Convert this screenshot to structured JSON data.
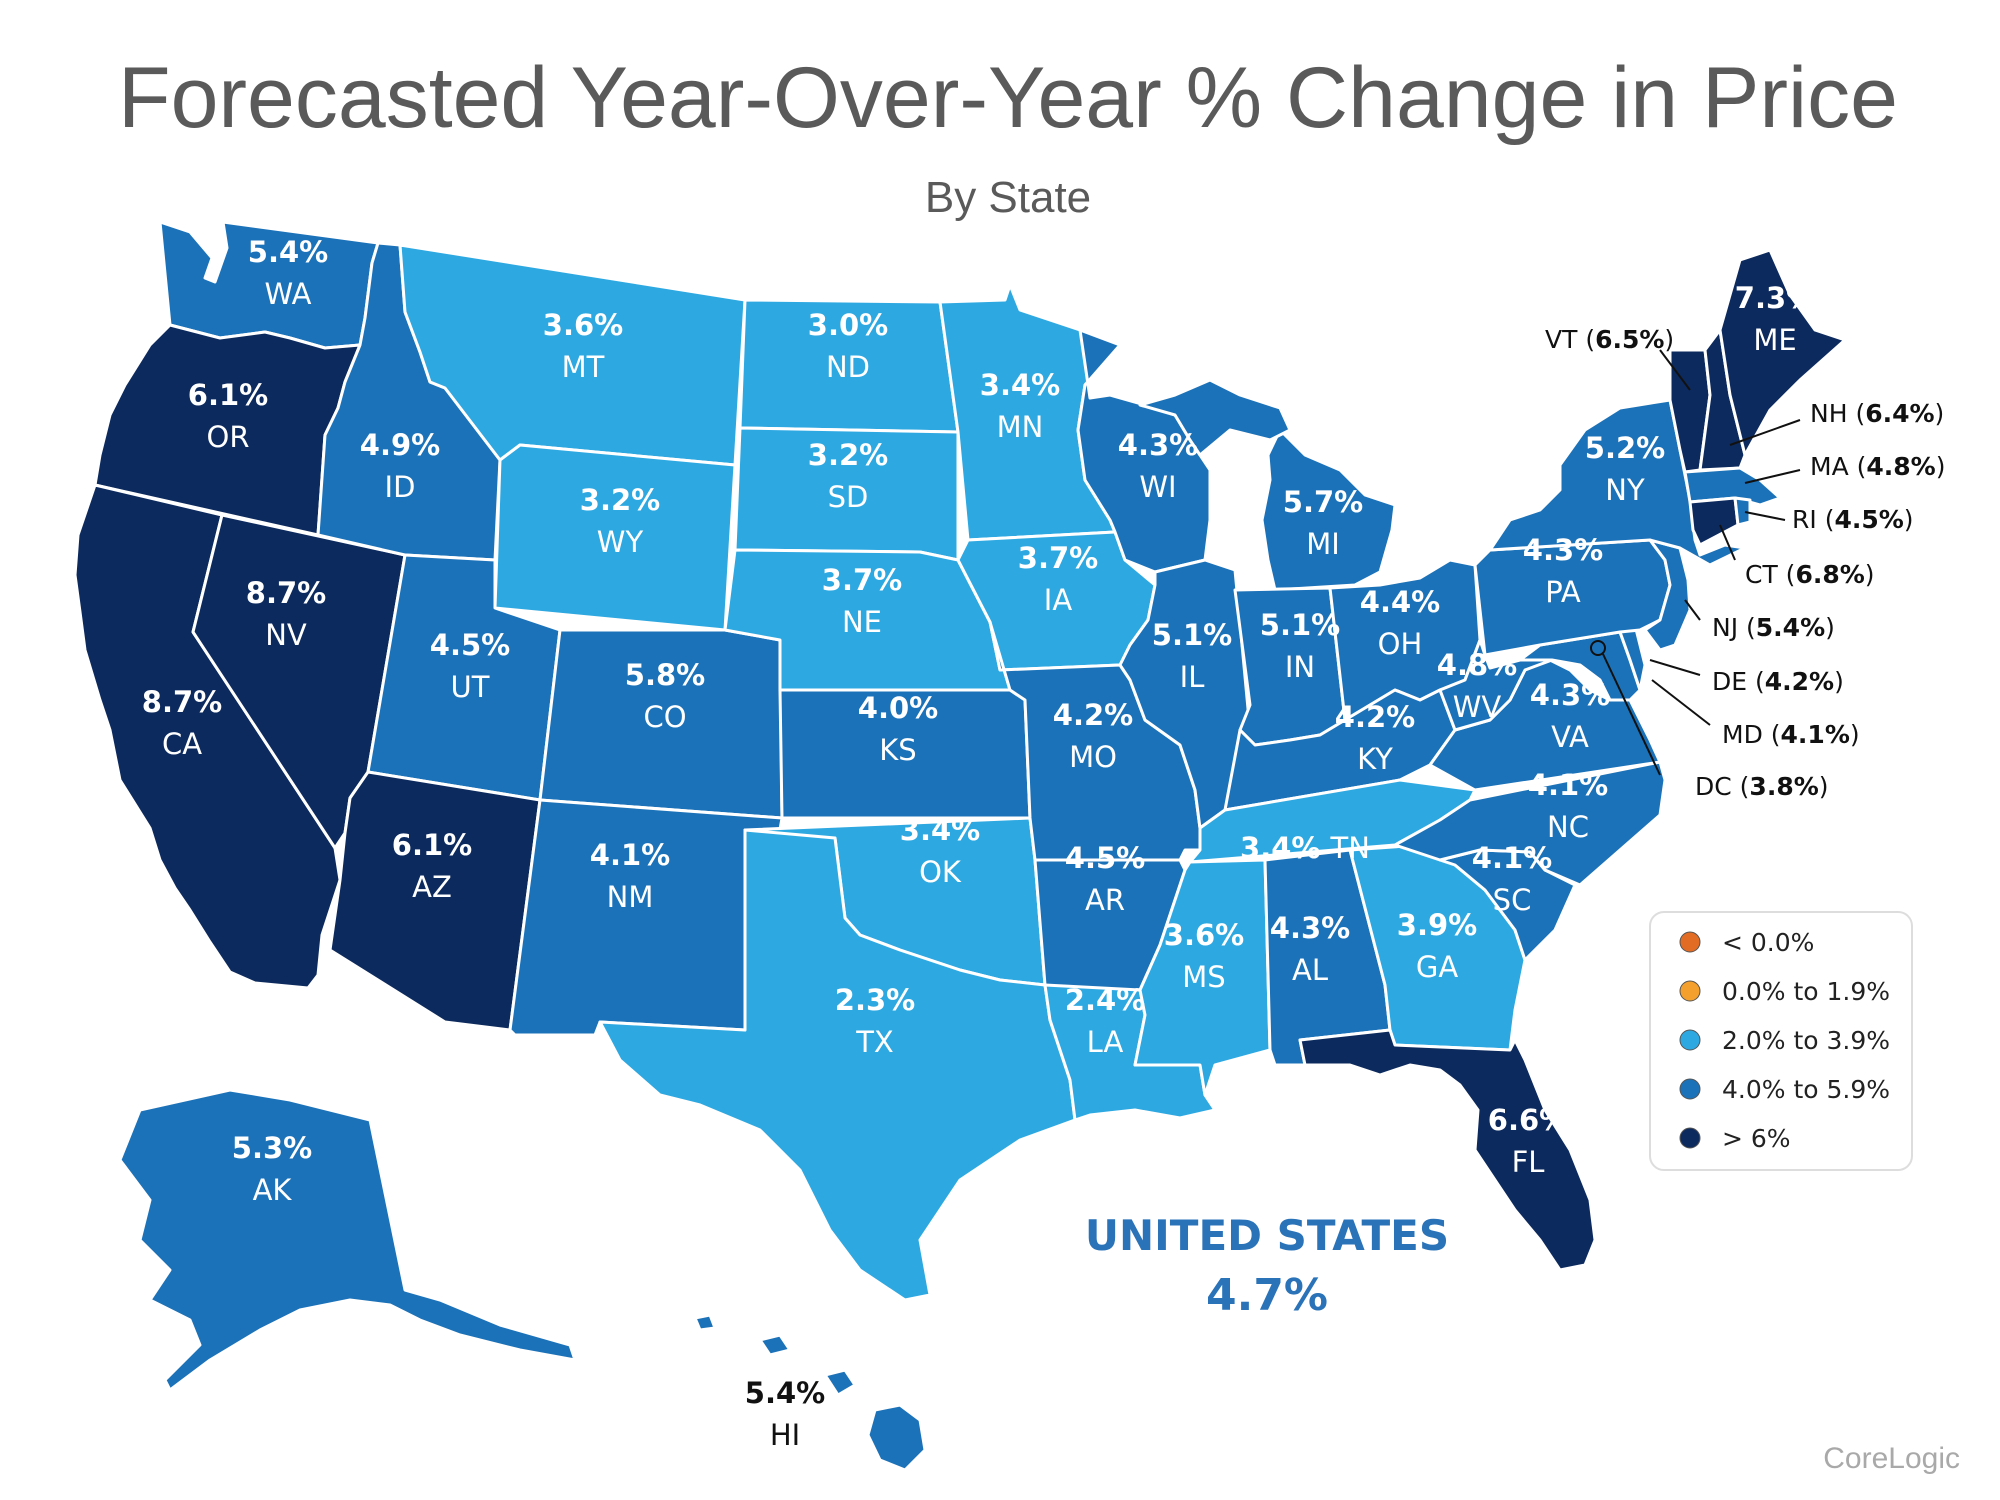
{
  "title": "Forecasted Year-Over-Year % Change in Price",
  "subtitle": "By State",
  "source": "CoreLogic",
  "national": {
    "label": "UNITED STATES",
    "value": "4.7%"
  },
  "colors": {
    "lt0": "#e36c24",
    "c0_19": "#f4a02e",
    "c2_39": "#2ea8e1",
    "c4_59": "#1c72b8",
    "gt6": "#0d2a5e",
    "border": "#ffffff"
  },
  "legend": [
    {
      "label": "< 0.0%",
      "color": "#e36c24"
    },
    {
      "label": "0.0% to 1.9%",
      "color": "#f4a02e"
    },
    {
      "label": "2.0% to 3.9%",
      "color": "#2ea8e1"
    },
    {
      "label": "4.0% to 5.9%",
      "color": "#1c72b8"
    },
    {
      "label": "> 6%",
      "color": "#0d2a5e"
    }
  ],
  "states": [
    {
      "abbr": "WA",
      "value": "5.4%"
    },
    {
      "abbr": "OR",
      "value": "6.1%"
    },
    {
      "abbr": "CA",
      "value": "8.7%"
    },
    {
      "abbr": "NV",
      "value": "8.7%"
    },
    {
      "abbr": "ID",
      "value": "4.9%"
    },
    {
      "abbr": "MT",
      "value": "3.6%"
    },
    {
      "abbr": "WY",
      "value": "3.2%"
    },
    {
      "abbr": "UT",
      "value": "4.5%"
    },
    {
      "abbr": "AZ",
      "value": "6.1%"
    },
    {
      "abbr": "CO",
      "value": "5.8%"
    },
    {
      "abbr": "NM",
      "value": "4.1%"
    },
    {
      "abbr": "ND",
      "value": "3.0%"
    },
    {
      "abbr": "SD",
      "value": "3.2%"
    },
    {
      "abbr": "NE",
      "value": "3.7%"
    },
    {
      "abbr": "KS",
      "value": "4.0%"
    },
    {
      "abbr": "OK",
      "value": "3.4%"
    },
    {
      "abbr": "TX",
      "value": "2.3%"
    },
    {
      "abbr": "MN",
      "value": "3.4%"
    },
    {
      "abbr": "IA",
      "value": "3.7%"
    },
    {
      "abbr": "MO",
      "value": "4.2%"
    },
    {
      "abbr": "AR",
      "value": "4.5%"
    },
    {
      "abbr": "LA",
      "value": "2.4%"
    },
    {
      "abbr": "WI",
      "value": "4.3%"
    },
    {
      "abbr": "IL",
      "value": "5.1%"
    },
    {
      "abbr": "MI",
      "value": "5.7%"
    },
    {
      "abbr": "IN",
      "value": "5.1%"
    },
    {
      "abbr": "OH",
      "value": "4.4%"
    },
    {
      "abbr": "KY",
      "value": "4.2%"
    },
    {
      "abbr": "TN",
      "value": "3.4%"
    },
    {
      "abbr": "MS",
      "value": "3.6%"
    },
    {
      "abbr": "AL",
      "value": "4.3%"
    },
    {
      "abbr": "GA",
      "value": "3.9%"
    },
    {
      "abbr": "FL",
      "value": "6.6%"
    },
    {
      "abbr": "SC",
      "value": "4.1%"
    },
    {
      "abbr": "NC",
      "value": "4.1%"
    },
    {
      "abbr": "VA",
      "value": "4.3%"
    },
    {
      "abbr": "WV",
      "value": "4.8%"
    },
    {
      "abbr": "PA",
      "value": "4.3%"
    },
    {
      "abbr": "NY",
      "value": "5.2%"
    },
    {
      "abbr": "ME",
      "value": "7.3%"
    },
    {
      "abbr": "AK",
      "value": "5.3%"
    },
    {
      "abbr": "HI",
      "value": "5.4%"
    }
  ],
  "callouts": [
    {
      "abbr": "VT",
      "value": "6.5%"
    },
    {
      "abbr": "NH",
      "value": "6.4%"
    },
    {
      "abbr": "MA",
      "value": "4.8%"
    },
    {
      "abbr": "RI",
      "value": "4.5%"
    },
    {
      "abbr": "CT",
      "value": "6.8%"
    },
    {
      "abbr": "NJ",
      "value": "5.4%"
    },
    {
      "abbr": "DE",
      "value": "4.2%"
    },
    {
      "abbr": "MD",
      "value": "4.1%"
    },
    {
      "abbr": "DC",
      "value": "3.8%"
    }
  ]
}
